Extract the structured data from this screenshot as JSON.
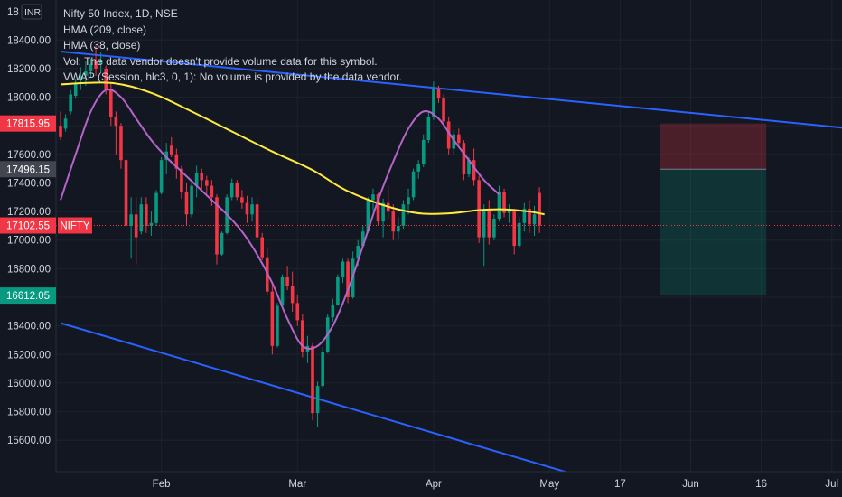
{
  "legend": {
    "title": "Nifty 50 Index, 1D, NSE",
    "lines": [
      "HMA (209, close)",
      "HMA (38, close)",
      "Vol: The data vendor doesn't provide volume data for this symbol.",
      "VWAP (Session, hlc3, 0, 1): No volume is provided by the data vendor."
    ]
  },
  "chart_data": {
    "type": "candlestick",
    "symbol": "NIFTY",
    "currency": "INR",
    "y_axis_top_label": "18",
    "ylim": [
      15380,
      18680
    ],
    "y_ticks": [
      "18400.00",
      "18200.00",
      "18000.00",
      "17800.00",
      "17600.00",
      "17400.00",
      "17200.00",
      "17000.00",
      "16800.00",
      "16600.00",
      "16400.00",
      "16200.00",
      "16000.00",
      "15800.00",
      "15600.00"
    ],
    "x_ticks": [
      "Feb",
      "Mar",
      "Apr",
      "May",
      "17",
      "Jun",
      "16",
      "Jul"
    ],
    "price_labels": [
      {
        "text": "17815.95",
        "value": 17815.95,
        "color": "#f23645"
      },
      {
        "text": "17496.15",
        "value": 17496.15,
        "color": "#434651"
      },
      {
        "text": "17102.55",
        "value": 17102.55,
        "color": "#f23645"
      },
      {
        "text": "NIFTY",
        "value": 17102.55,
        "color": "#f23645"
      },
      {
        "text": "16612.05",
        "value": 16612.05,
        "color": "#089981"
      }
    ],
    "last_price": 17102.55,
    "candles": [
      {
        "o": 17800,
        "h": 17900,
        "l": 17700,
        "c": 17720
      },
      {
        "o": 17780,
        "h": 17880,
        "l": 17760,
        "c": 17850
      },
      {
        "o": 17900,
        "h": 18050,
        "l": 17880,
        "c": 18020
      },
      {
        "o": 18010,
        "h": 18130,
        "l": 17990,
        "c": 18100
      },
      {
        "o": 18120,
        "h": 18210,
        "l": 18050,
        "c": 18150
      },
      {
        "o": 18150,
        "h": 18250,
        "l": 18080,
        "c": 18180
      },
      {
        "o": 18180,
        "h": 18270,
        "l": 18140,
        "c": 18230
      },
      {
        "o": 18250,
        "h": 18360,
        "l": 18150,
        "c": 18200
      },
      {
        "o": 18230,
        "h": 18320,
        "l": 18170,
        "c": 18260
      },
      {
        "o": 18200,
        "h": 18220,
        "l": 18020,
        "c": 18060
      },
      {
        "o": 18060,
        "h": 18100,
        "l": 17800,
        "c": 17860
      },
      {
        "o": 17860,
        "h": 17900,
        "l": 17600,
        "c": 17800
      },
      {
        "o": 17800,
        "h": 17820,
        "l": 17500,
        "c": 17560
      },
      {
        "o": 17560,
        "h": 17580,
        "l": 17050,
        "c": 17100
      },
      {
        "o": 17100,
        "h": 17300,
        "l": 16870,
        "c": 17180
      },
      {
        "o": 17180,
        "h": 17300,
        "l": 16830,
        "c": 17020
      },
      {
        "o": 17060,
        "h": 17300,
        "l": 17040,
        "c": 17250
      },
      {
        "o": 17250,
        "h": 17300,
        "l": 17050,
        "c": 17100
      },
      {
        "o": 17100,
        "h": 17200,
        "l": 17030,
        "c": 17120
      },
      {
        "o": 17120,
        "h": 17350,
        "l": 17100,
        "c": 17330
      },
      {
        "o": 17330,
        "h": 17580,
        "l": 17320,
        "c": 17560
      },
      {
        "o": 17560,
        "h": 17680,
        "l": 17460,
        "c": 17620
      },
      {
        "o": 17660,
        "h": 17720,
        "l": 17580,
        "c": 17600
      },
      {
        "o": 17600,
        "h": 17640,
        "l": 17430,
        "c": 17500
      },
      {
        "o": 17500,
        "h": 17520,
        "l": 17290,
        "c": 17340
      },
      {
        "o": 17340,
        "h": 17400,
        "l": 17100,
        "c": 17180
      },
      {
        "o": 17180,
        "h": 17400,
        "l": 17160,
        "c": 17380
      },
      {
        "o": 17380,
        "h": 17520,
        "l": 17300,
        "c": 17470
      },
      {
        "o": 17470,
        "h": 17500,
        "l": 17350,
        "c": 17420
      },
      {
        "o": 17420,
        "h": 17450,
        "l": 17320,
        "c": 17380
      },
      {
        "o": 17380,
        "h": 17420,
        "l": 17240,
        "c": 17300
      },
      {
        "o": 17300,
        "h": 17320,
        "l": 16830,
        "c": 16900
      },
      {
        "o": 16900,
        "h": 17060,
        "l": 16890,
        "c": 17050
      },
      {
        "o": 17050,
        "h": 17320,
        "l": 17040,
        "c": 17300
      },
      {
        "o": 17300,
        "h": 17430,
        "l": 17280,
        "c": 17400
      },
      {
        "o": 17400,
        "h": 17420,
        "l": 17280,
        "c": 17300
      },
      {
        "o": 17300,
        "h": 17350,
        "l": 17220,
        "c": 17260
      },
      {
        "o": 17260,
        "h": 17310,
        "l": 17120,
        "c": 17180
      },
      {
        "o": 17180,
        "h": 17300,
        "l": 17130,
        "c": 17250
      },
      {
        "o": 17250,
        "h": 17300,
        "l": 17000,
        "c": 17020
      },
      {
        "o": 17020,
        "h": 17050,
        "l": 16860,
        "c": 16880
      },
      {
        "o": 16880,
        "h": 16950,
        "l": 16620,
        "c": 16640
      },
      {
        "o": 16640,
        "h": 16700,
        "l": 16200,
        "c": 16260
      },
      {
        "o": 16260,
        "h": 16560,
        "l": 16250,
        "c": 16540
      },
      {
        "o": 16540,
        "h": 16760,
        "l": 16530,
        "c": 16740
      },
      {
        "o": 16740,
        "h": 16820,
        "l": 16650,
        "c": 16680
      },
      {
        "o": 16680,
        "h": 16780,
        "l": 16500,
        "c": 16560
      },
      {
        "o": 16560,
        "h": 16620,
        "l": 16400,
        "c": 16440
      },
      {
        "o": 16440,
        "h": 16480,
        "l": 16180,
        "c": 16220
      },
      {
        "o": 16220,
        "h": 16330,
        "l": 16140,
        "c": 16260
      },
      {
        "o": 16260,
        "h": 16280,
        "l": 15740,
        "c": 15790
      },
      {
        "o": 15790,
        "h": 16010,
        "l": 15690,
        "c": 15980
      },
      {
        "o": 15980,
        "h": 16250,
        "l": 15970,
        "c": 16220
      },
      {
        "o": 16220,
        "h": 16480,
        "l": 16210,
        "c": 16460
      },
      {
        "o": 16460,
        "h": 16590,
        "l": 16430,
        "c": 16550
      },
      {
        "o": 16550,
        "h": 16760,
        "l": 16540,
        "c": 16740
      },
      {
        "o": 16740,
        "h": 16870,
        "l": 16700,
        "c": 16850
      },
      {
        "o": 16850,
        "h": 16870,
        "l": 16560,
        "c": 16600
      },
      {
        "o": 16600,
        "h": 16920,
        "l": 16590,
        "c": 16870
      },
      {
        "o": 16870,
        "h": 17000,
        "l": 16820,
        "c": 16960
      },
      {
        "o": 16960,
        "h": 17100,
        "l": 16950,
        "c": 17060
      },
      {
        "o": 17060,
        "h": 17300,
        "l": 17050,
        "c": 17280
      },
      {
        "o": 17280,
        "h": 17360,
        "l": 17200,
        "c": 17320
      },
      {
        "o": 17320,
        "h": 17330,
        "l": 17100,
        "c": 17130
      },
      {
        "o": 17130,
        "h": 17290,
        "l": 17020,
        "c": 17260
      },
      {
        "o": 17260,
        "h": 17380,
        "l": 17150,
        "c": 17200
      },
      {
        "o": 17200,
        "h": 17250,
        "l": 17000,
        "c": 17060
      },
      {
        "o": 17060,
        "h": 17160,
        "l": 17010,
        "c": 17100
      },
      {
        "o": 17100,
        "h": 17280,
        "l": 17080,
        "c": 17250
      },
      {
        "o": 17250,
        "h": 17360,
        "l": 17180,
        "c": 17300
      },
      {
        "o": 17300,
        "h": 17500,
        "l": 17280,
        "c": 17480
      },
      {
        "o": 17480,
        "h": 17560,
        "l": 17430,
        "c": 17530
      },
      {
        "o": 17530,
        "h": 17740,
        "l": 17510,
        "c": 17700
      },
      {
        "o": 17700,
        "h": 17900,
        "l": 17680,
        "c": 17860
      },
      {
        "o": 17860,
        "h": 18110,
        "l": 17840,
        "c": 18060
      },
      {
        "o": 18060,
        "h": 18080,
        "l": 17960,
        "c": 17990
      },
      {
        "o": 17990,
        "h": 18020,
        "l": 17800,
        "c": 17830
      },
      {
        "o": 17830,
        "h": 17860,
        "l": 17600,
        "c": 17640
      },
      {
        "o": 17640,
        "h": 17770,
        "l": 17600,
        "c": 17740
      },
      {
        "o": 17740,
        "h": 17780,
        "l": 17660,
        "c": 17680
      },
      {
        "o": 17680,
        "h": 17700,
        "l": 17420,
        "c": 17460
      },
      {
        "o": 17460,
        "h": 17580,
        "l": 17440,
        "c": 17560
      },
      {
        "o": 17560,
        "h": 17640,
        "l": 17380,
        "c": 17420
      },
      {
        "o": 17420,
        "h": 17450,
        "l": 16980,
        "c": 17020
      },
      {
        "o": 17020,
        "h": 17250,
        "l": 16820,
        "c": 17220
      },
      {
        "o": 17220,
        "h": 17280,
        "l": 16970,
        "c": 17020
      },
      {
        "o": 17020,
        "h": 17180,
        "l": 17000,
        "c": 17150
      },
      {
        "o": 17150,
        "h": 17380,
        "l": 17130,
        "c": 17340
      },
      {
        "o": 17340,
        "h": 17360,
        "l": 17160,
        "c": 17190
      },
      {
        "o": 17190,
        "h": 17250,
        "l": 17120,
        "c": 17200
      },
      {
        "o": 17200,
        "h": 17220,
        "l": 16900,
        "c": 16960
      },
      {
        "o": 16960,
        "h": 17160,
        "l": 16950,
        "c": 17120
      },
      {
        "o": 17120,
        "h": 17260,
        "l": 17060,
        "c": 17220
      },
      {
        "o": 17220,
        "h": 17280,
        "l": 17050,
        "c": 17110
      },
      {
        "o": 17110,
        "h": 17240,
        "l": 17030,
        "c": 17180
      },
      {
        "o": 17330,
        "h": 17370,
        "l": 17050,
        "c": 17102.55
      }
    ],
    "hma_long": [
      {
        "t": 0,
        "v": 18090
      },
      {
        "t": 10,
        "v": 18100
      },
      {
        "t": 18,
        "v": 18030
      },
      {
        "t": 26,
        "v": 17900
      },
      {
        "t": 34,
        "v": 17760
      },
      {
        "t": 42,
        "v": 17620
      },
      {
        "t": 50,
        "v": 17490
      },
      {
        "t": 56,
        "v": 17360
      },
      {
        "t": 62,
        "v": 17270
      },
      {
        "t": 67,
        "v": 17215
      },
      {
        "t": 72,
        "v": 17185
      },
      {
        "t": 78,
        "v": 17190
      },
      {
        "t": 83,
        "v": 17210
      },
      {
        "t": 88,
        "v": 17215
      },
      {
        "t": 93,
        "v": 17200
      },
      {
        "t": 96,
        "v": 17180
      }
    ],
    "hma_short": [
      {
        "t": 0,
        "v": 17280
      },
      {
        "t": 3,
        "v": 17600
      },
      {
        "t": 6,
        "v": 17900
      },
      {
        "t": 9,
        "v": 18050
      },
      {
        "t": 12,
        "v": 18000
      },
      {
        "t": 15,
        "v": 17850
      },
      {
        "t": 18,
        "v": 17700
      },
      {
        "t": 21,
        "v": 17580
      },
      {
        "t": 24,
        "v": 17480
      },
      {
        "t": 27,
        "v": 17380
      },
      {
        "t": 30,
        "v": 17280
      },
      {
        "t": 33,
        "v": 17180
      },
      {
        "t": 36,
        "v": 17060
      },
      {
        "t": 39,
        "v": 16900
      },
      {
        "t": 42,
        "v": 16700
      },
      {
        "t": 45,
        "v": 16450
      },
      {
        "t": 48,
        "v": 16260
      },
      {
        "t": 51,
        "v": 16260
      },
      {
        "t": 54,
        "v": 16400
      },
      {
        "t": 57,
        "v": 16650
      },
      {
        "t": 60,
        "v": 16960
      },
      {
        "t": 63,
        "v": 17280
      },
      {
        "t": 66,
        "v": 17550
      },
      {
        "t": 69,
        "v": 17780
      },
      {
        "t": 72,
        "v": 17900
      },
      {
        "t": 75,
        "v": 17850
      },
      {
        "t": 78,
        "v": 17700
      },
      {
        "t": 81,
        "v": 17560
      },
      {
        "t": 84,
        "v": 17420
      },
      {
        "t": 87,
        "v": 17320
      }
    ],
    "trendlines": [
      {
        "from": {
          "t": 0,
          "v": 18320
        },
        "to": {
          "t": 195,
          "v": 17650
        }
      },
      {
        "from": {
          "t": 0,
          "v": 16420
        },
        "to": {
          "t": 102,
          "v": 15360
        }
      }
    ],
    "position": {
      "entry": 17496.15,
      "stop": 17815.95,
      "target": 16612.05,
      "t_start": 119,
      "t_end": 140
    }
  }
}
